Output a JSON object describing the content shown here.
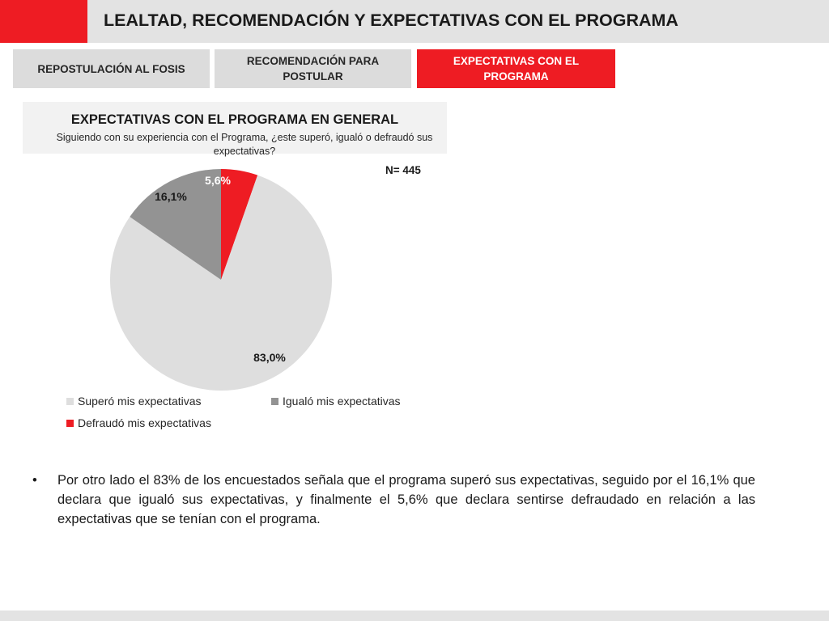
{
  "header": {
    "title": "LEALTAD, RECOMENDACIÓN Y EXPECTATIVAS CON EL PROGRAMA",
    "accent_color": "#ee1c23"
  },
  "tabs": [
    {
      "label": "REPOSTULACIÓN AL FOSIS",
      "active": false
    },
    {
      "label": "RECOMENDACIÓN PARA POSTULAR",
      "active": false
    },
    {
      "label": "EXPECTATIVAS CON EL PROGRAMA",
      "active": true
    }
  ],
  "chart_header": {
    "title": "EXPECTATIVAS CON EL PROGRAMA EN GENERAL",
    "subtitle": "Siguiendo con su experiencia con el Programa, ¿este superó, igualó o defraudó sus expectativas?"
  },
  "sample_size": "N= 445",
  "chart_data": {
    "type": "pie",
    "title": "EXPECTATIVAS CON EL PROGRAMA EN GENERAL",
    "subtitle": "Siguiendo con su experiencia con el Programa, ¿este superó, igualó o defraudó sus expectativas?",
    "slices": [
      {
        "label": "Superó mis expectativas",
        "value": 83.0,
        "display": "83,0%",
        "color": "#dedede",
        "label_color": "#1a1a1a"
      },
      {
        "label": "Igualó mis expectativas",
        "value": 16.1,
        "display": "16,1%",
        "color": "#939393",
        "label_color": "#1a1a1a"
      },
      {
        "label": "Defraudó mis expectativas",
        "value": 5.6,
        "display": "5,6%",
        "color": "#ee1c23",
        "label_color": "#ffffff"
      }
    ],
    "legend_position": "bottom"
  },
  "bullet": {
    "symbol": "•",
    "text": "Por otro lado el 83% de los encuestados señala que el programa superó sus expectativas, seguido por el 16,1% que declara que igualó sus expectativas, y finalmente el 5,6% que declara sentirse defraudado en relación a las expectativas que se tenían con el programa."
  }
}
